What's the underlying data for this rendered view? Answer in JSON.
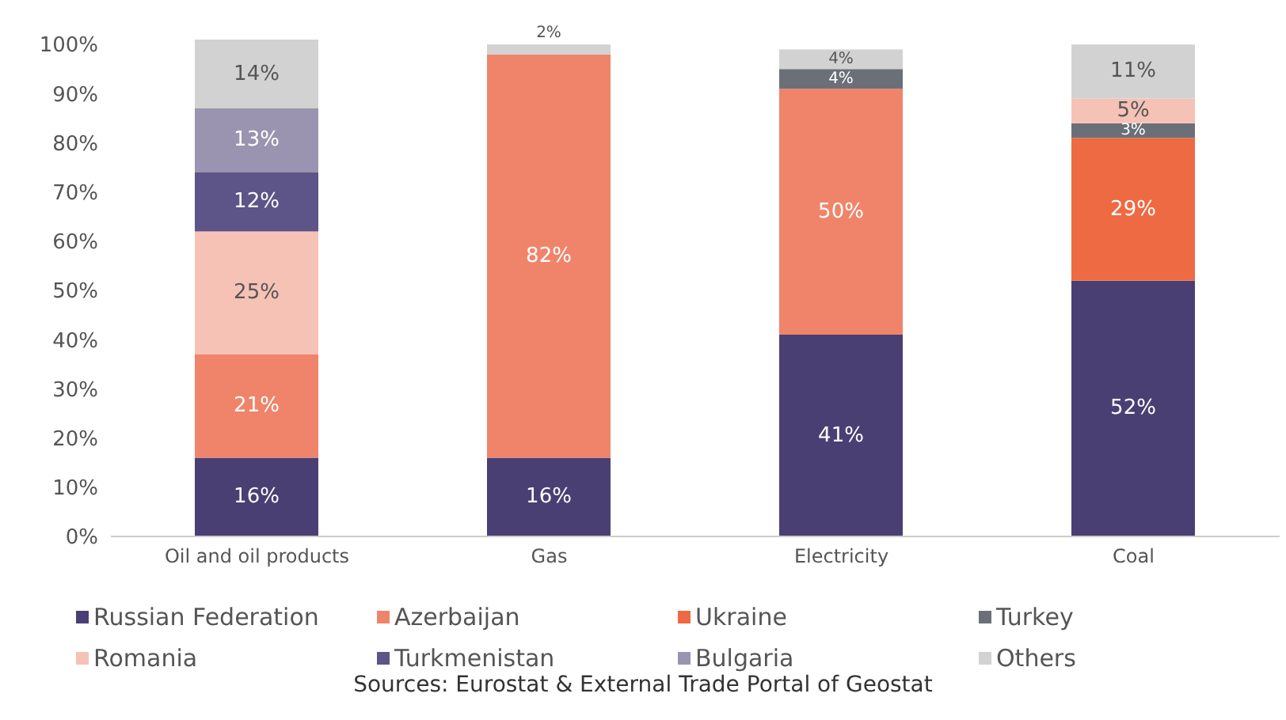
{
  "chart_data": {
    "type": "bar",
    "stacked": true,
    "categories": [
      "Oil and oil products",
      "Gas",
      "Electricity",
      "Coal"
    ],
    "series": [
      {
        "name": "Russian Federation",
        "color": "#4a3f73",
        "values": [
          16,
          16,
          41,
          52
        ],
        "value_labels": [
          "16%",
          "16%",
          "41%",
          "52%"
        ]
      },
      {
        "name": "Azerbaijan",
        "color": "#f0846a",
        "values": [
          21,
          82,
          50,
          null
        ],
        "value_labels": [
          "21%",
          "82%",
          "50%",
          null
        ]
      },
      {
        "name": "Ukraine",
        "color": "#ee6a42",
        "values": [
          null,
          null,
          null,
          29
        ],
        "value_labels": [
          null,
          null,
          null,
          "29%"
        ]
      },
      {
        "name": "Turkey",
        "color": "#6b7078",
        "values": [
          null,
          null,
          4,
          3
        ],
        "value_labels": [
          null,
          null,
          "4%",
          "3%"
        ]
      },
      {
        "name": "Romania",
        "color": "#f6c2b5",
        "values": [
          25,
          null,
          null,
          5
        ],
        "value_labels": [
          "25%",
          null,
          null,
          "5%"
        ]
      },
      {
        "name": "Turkmenistan",
        "color": "#5d5488",
        "values": [
          12,
          null,
          null,
          null
        ],
        "value_labels": [
          "12%",
          null,
          null,
          null
        ]
      },
      {
        "name": "Bulgaria",
        "color": "#9a94b0",
        "values": [
          13,
          null,
          null,
          null
        ],
        "value_labels": [
          "13%",
          null,
          null,
          null
        ]
      },
      {
        "name": "Others",
        "color": "#d2d2d2",
        "values": [
          14,
          2,
          4,
          11
        ],
        "value_labels": [
          "14%",
          "2%",
          "4%",
          "11%"
        ]
      }
    ],
    "ylim": [
      0,
      101
    ],
    "yticks": [
      {
        "value": 0,
        "label": "0%"
      },
      {
        "value": 10,
        "label": "10%"
      },
      {
        "value": 20,
        "label": "20%"
      },
      {
        "value": 30,
        "label": "30%"
      },
      {
        "value": 40,
        "label": "40%"
      },
      {
        "value": 50,
        "label": "50%"
      },
      {
        "value": 60,
        "label": "60%"
      },
      {
        "value": 70,
        "label": "70%"
      },
      {
        "value": 80,
        "label": "80%"
      },
      {
        "value": 90,
        "label": "90%"
      },
      {
        "value": 100,
        "label": "100%"
      }
    ],
    "grid": false,
    "legend": "bottom",
    "annotations": [
      "Sources:  Eurostat & External Trade Portal of Geostat"
    ]
  }
}
